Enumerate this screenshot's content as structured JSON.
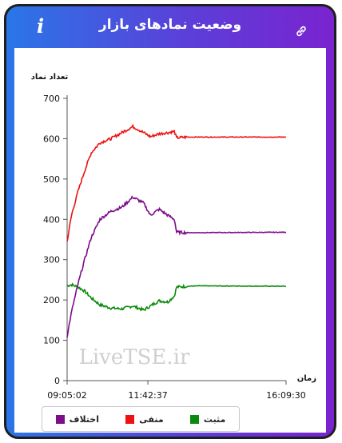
{
  "header": {
    "title": "وضعیت نمادهای بازار",
    "info_icon": "i",
    "link_icon": "link-icon"
  },
  "watermark": "LiveTSE.ir",
  "chart_data": {
    "type": "line",
    "ylabel": "تعداد نماد",
    "xlabel": "زمان",
    "ylim": [
      0,
      700
    ],
    "yticks": [
      0,
      100,
      200,
      300,
      400,
      500,
      600,
      700
    ],
    "xticks": [
      "09:05:02",
      "11:42:37",
      "16:09:30"
    ],
    "xtick_positions": [
      0,
      0.3688,
      1
    ],
    "grid": false,
    "legend_position": "bottom",
    "x_fraction": [
      0,
      0.02,
      0.05,
      0.08,
      0.11,
      0.15,
      0.2,
      0.25,
      0.3,
      0.35,
      0.38,
      0.42,
      0.46,
      0.49,
      0.5,
      0.55,
      0.6,
      1.0
    ],
    "series": [
      {
        "name": "مثبت",
        "color": "#0a8a0a",
        "values": [
          235,
          238,
          232,
          222,
          205,
          188,
          180,
          178,
          185,
          175,
          185,
          198,
          195,
          210,
          232,
          234,
          235,
          234
        ]
      },
      {
        "name": "منفی",
        "color": "#ee1111",
        "values": [
          345,
          410,
          470,
          520,
          565,
          590,
          600,
          615,
          630,
          615,
          605,
          612,
          615,
          618,
          602,
          604,
          604,
          604
        ]
      },
      {
        "name": "اختلاف",
        "color": "#7d0d8a",
        "values": [
          110,
          170,
          240,
          300,
          355,
          400,
          420,
          430,
          455,
          440,
          410,
          425,
          410,
          400,
          368,
          367,
          367,
          368
        ]
      }
    ]
  },
  "legend": {
    "items": [
      "مثبت",
      "منفی",
      "اختلاف"
    ]
  }
}
